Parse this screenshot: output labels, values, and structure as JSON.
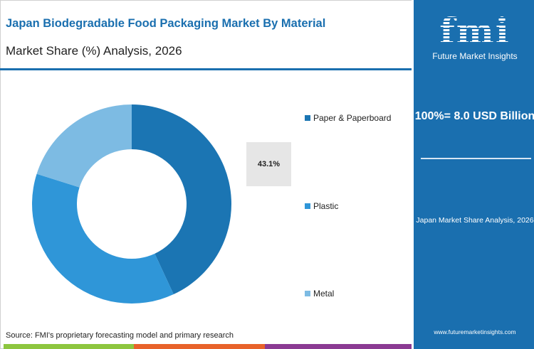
{
  "header": {
    "title": "Japan Biodegradable Food Packaging Market By Material",
    "subtitle": "Market Share (%) Analysis, 2026"
  },
  "side": {
    "logo_text": "fmi",
    "logo_name": "Future Market Insights",
    "total": "100%= 8.0 USD Billion",
    "caption": "Japan Market Share Analysis, 2026",
    "url": "www.futuremarketinsights.com"
  },
  "footer": {
    "source": "Source: FMI's proprietary forecasting model and primary research",
    "bar_colors": [
      "#8dc63f",
      "#e8622a",
      "#8b3a93"
    ]
  },
  "chart_data": {
    "type": "pie",
    "donut": true,
    "categories": [
      "Paper & Paperboard",
      "Plastic",
      "Metal"
    ],
    "values": [
      43.1,
      36.8,
      20.1
    ],
    "colors": [
      "#1b75b3",
      "#2f96d8",
      "#7dbbe3"
    ],
    "data_labels": [
      "43.1%"
    ],
    "legend_position": "right"
  }
}
